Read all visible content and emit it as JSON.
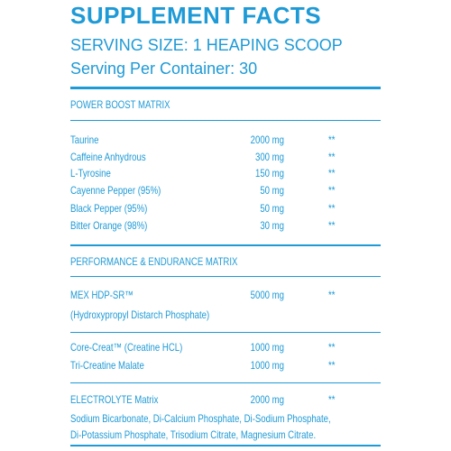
{
  "header": {
    "title": "SUPPLEMENT FACTS",
    "serving_size": "SERVING SIZE: 1 HEAPING SCOOP",
    "servings_per_container": "Serving Per Container: 30"
  },
  "power_boost": {
    "title": "POWER BOOST MATRIX",
    "rows": [
      {
        "name": "Taurine",
        "amount": "2000 mg",
        "dv": "**"
      },
      {
        "name": "Caffeine Anhydrous",
        "amount": "300 mg",
        "dv": "**"
      },
      {
        "name": "L-Tyrosine",
        "amount": "150 mg",
        "dv": "**"
      },
      {
        "name": "Cayenne Pepper (95%)",
        "amount": "50 mg",
        "dv": "**"
      },
      {
        "name": "Black Pepper (95%)",
        "amount": "50 mg",
        "dv": "**"
      },
      {
        "name": "Bitter Orange (98%)",
        "amount": "30 mg",
        "dv": "**"
      }
    ]
  },
  "performance": {
    "title": "PERFORMANCE & ENDURANCE MATRIX",
    "rows": [
      {
        "name": "MEX HDP-SR™",
        "amount": "5000 mg",
        "dv": "**",
        "note": "(Hydroxypropyl Distarch Phosphate)"
      },
      {
        "name": "Core-Creat™ (Creatine HCL)",
        "amount": "1000 mg",
        "dv": "**"
      },
      {
        "name": "Tri-Creatine Malate",
        "amount": "1000 mg",
        "dv": "**"
      }
    ]
  },
  "electrolyte": {
    "name": "ELECTROLYTE Matrix",
    "amount": "2000 mg",
    "dv": "**",
    "ingredients": [
      "Sodium Bicarbonate, Di-Calcium Phosphate, Di-Sodium Phosphate,",
      "Di-Potassium Phosphate, Trisodium Citrate, Magnesium Citrate."
    ]
  }
}
